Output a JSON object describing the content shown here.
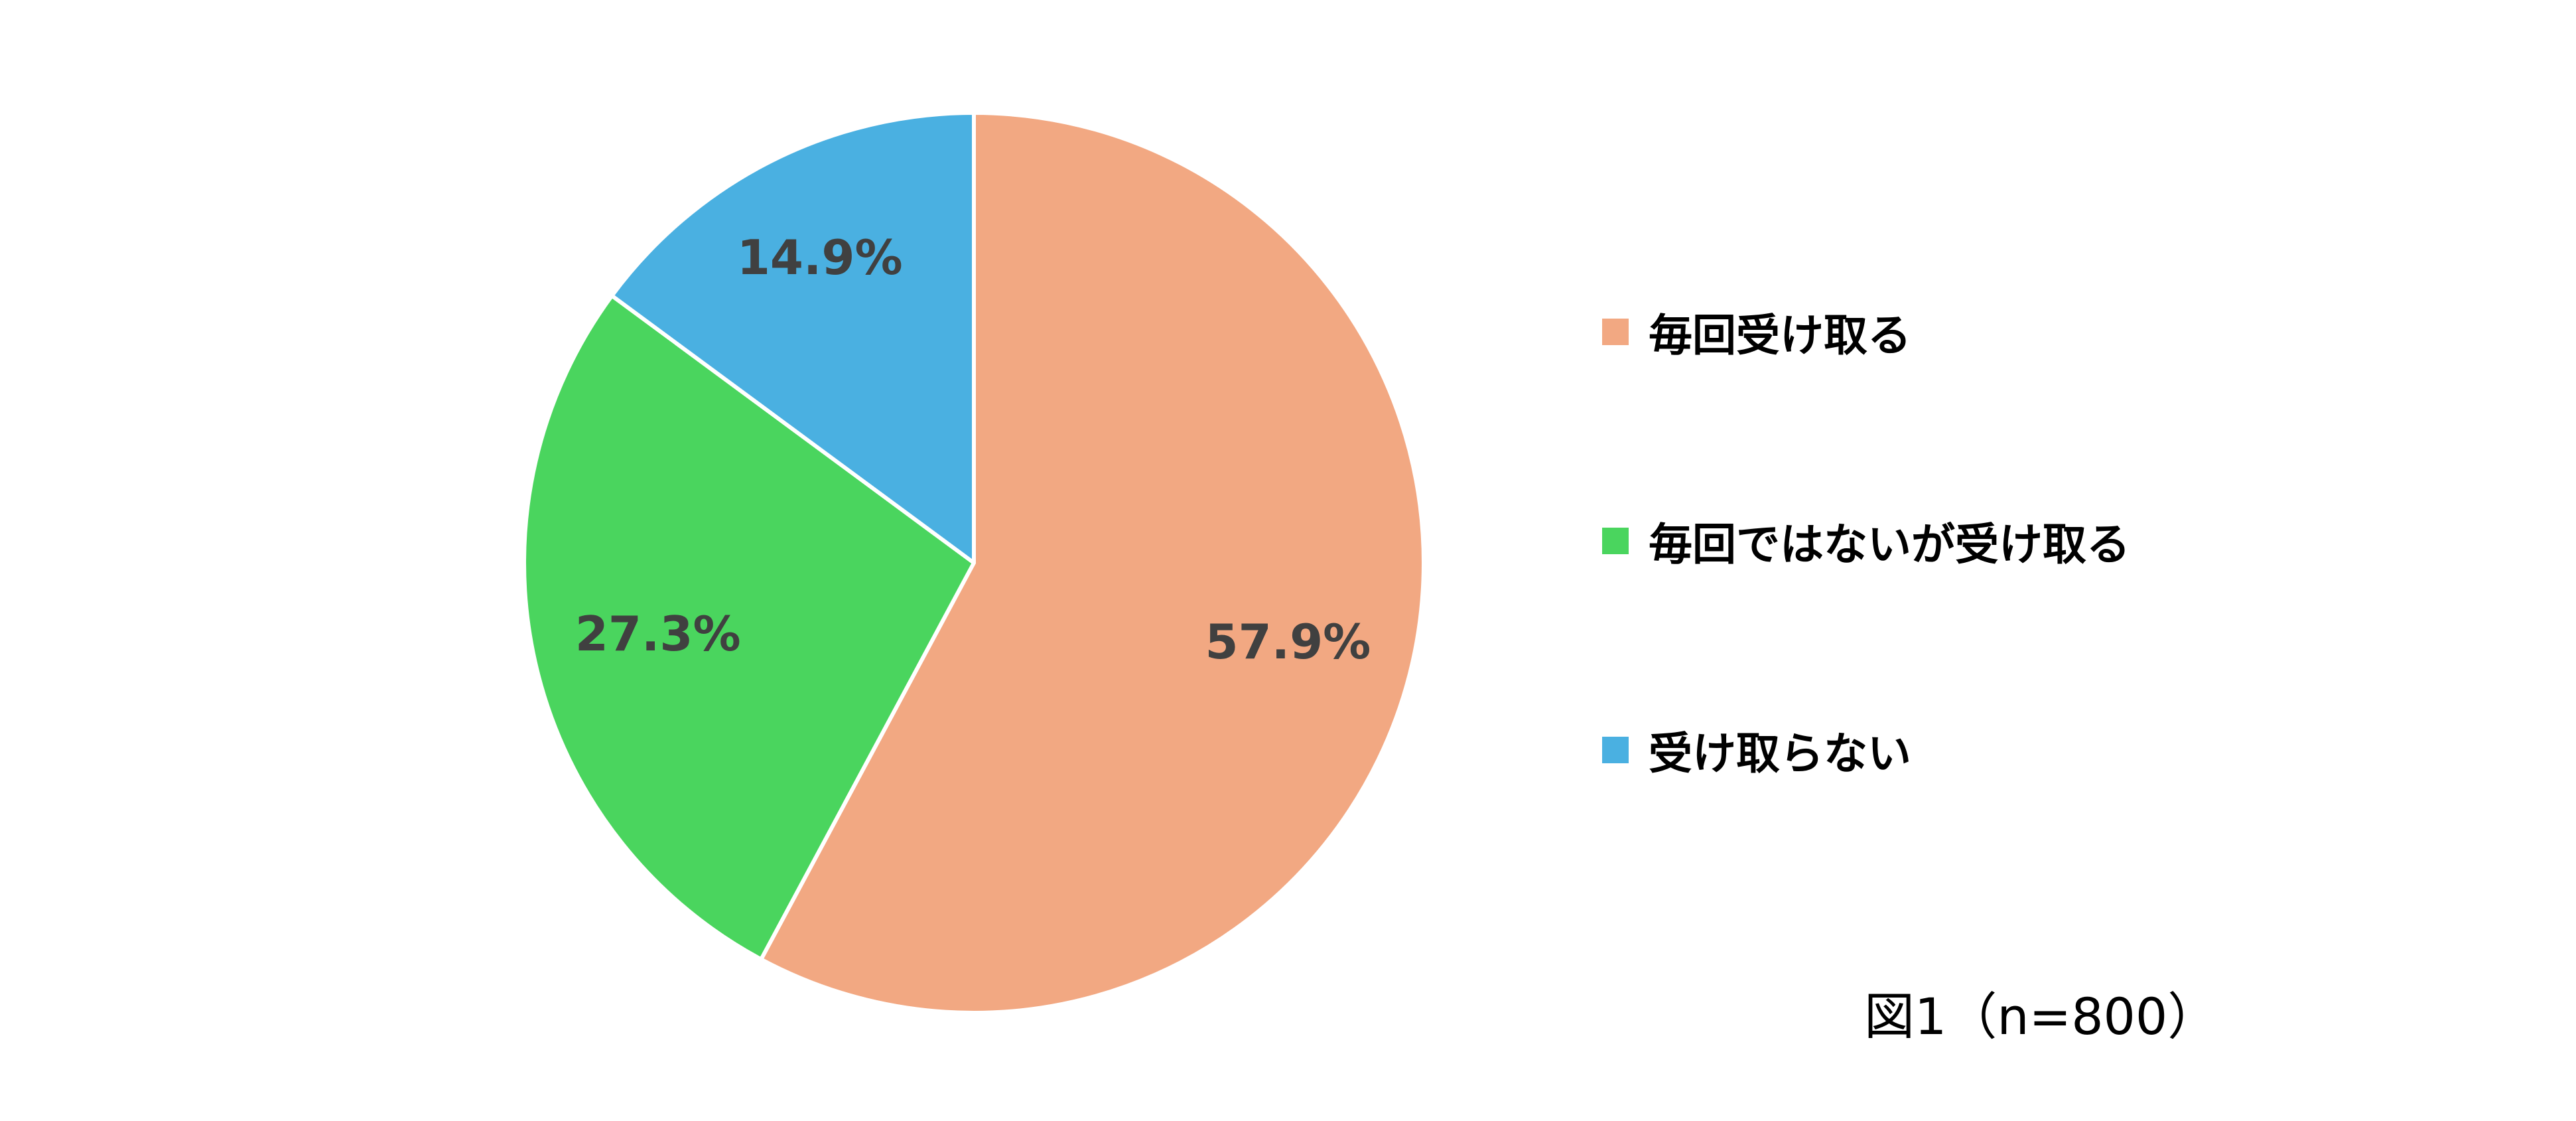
{
  "chart_data": {
    "type": "pie",
    "categories": [
      "毎回受け取る",
      "毎回ではないが受け取る",
      "受け取らない"
    ],
    "values": [
      57.9,
      27.3,
      14.9
    ],
    "value_labels": [
      "57.9%",
      "27.3%",
      "14.9%"
    ],
    "colors": [
      "#F2A882",
      "#4AD55E",
      "#4AB0E1"
    ],
    "start_angle": "12 o'clock",
    "direction": "clockwise",
    "legend_position": "right"
  },
  "caption": "図1（n=800）"
}
